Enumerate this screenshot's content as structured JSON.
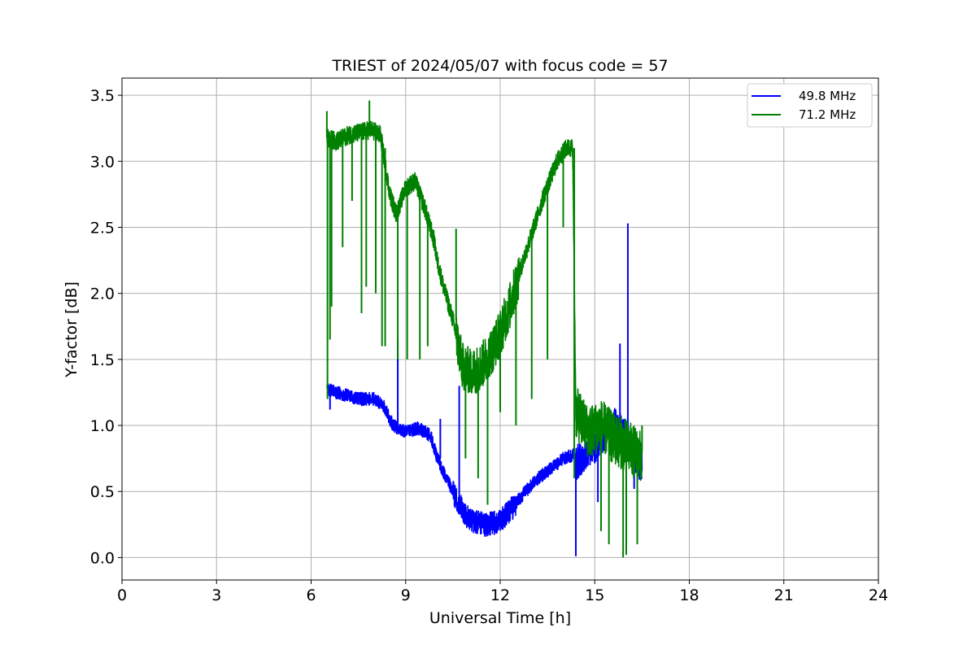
{
  "chart_data": {
    "type": "line",
    "title": "TRIEST of 2024/05/07 with focus code = 57",
    "xlabel": "Universal Time [h]",
    "ylabel": "Y-factor [dB]",
    "xlim": [
      0,
      24
    ],
    "ylim": [
      -0.17,
      3.63
    ],
    "xticks": [
      0,
      3,
      6,
      9,
      12,
      15,
      18,
      21,
      24
    ],
    "xtick_labels": [
      "0",
      "3",
      "6",
      "9",
      "12",
      "15",
      "18",
      "21",
      "24"
    ],
    "yticks": [
      0.0,
      0.5,
      1.0,
      1.5,
      2.0,
      2.5,
      3.0,
      3.5
    ],
    "ytick_labels": [
      "0.0",
      "0.5",
      "1.0",
      "1.5",
      "2.0",
      "2.5",
      "3.0",
      "3.5"
    ],
    "grid": true,
    "legend_position": "top-right",
    "series": [
      {
        "name": "49.8 MHz",
        "color": "#0000ff",
        "x": [
          6.5,
          6.8,
          7.2,
          7.6,
          8.0,
          8.3,
          8.6,
          9.0,
          9.4,
          9.8,
          10.0,
          10.3,
          10.6,
          10.9,
          11.2,
          11.5,
          11.8,
          12.1,
          12.4,
          12.8,
          13.2,
          13.6,
          14.0,
          14.35,
          14.4,
          14.7,
          15.0,
          15.3,
          15.6,
          15.8,
          16.1,
          16.3,
          16.5
        ],
        "y": [
          1.28,
          1.25,
          1.22,
          1.2,
          1.2,
          1.15,
          1.0,
          0.95,
          0.98,
          0.92,
          0.75,
          0.6,
          0.45,
          0.32,
          0.27,
          0.25,
          0.26,
          0.3,
          0.38,
          0.5,
          0.6,
          0.67,
          0.75,
          0.78,
          0.72,
          0.8,
          0.85,
          0.95,
          1.0,
          0.95,
          0.85,
          0.75,
          0.72
        ],
        "spikes": [
          {
            "x": 6.6,
            "from": 1.28,
            "to": 1.12
          },
          {
            "x": 8.75,
            "from": 1.0,
            "to": 1.64
          },
          {
            "x": 10.1,
            "from": 0.75,
            "to": 1.05
          },
          {
            "x": 10.7,
            "from": 0.45,
            "to": 1.3
          },
          {
            "x": 14.4,
            "from": 0.78,
            "to": 0.01
          },
          {
            "x": 15.1,
            "from": 0.85,
            "to": 0.42
          },
          {
            "x": 15.8,
            "from": 0.98,
            "to": 1.62
          },
          {
            "x": 16.05,
            "from": 0.9,
            "to": 2.53
          },
          {
            "x": 16.25,
            "from": 0.8,
            "to": 0.52
          }
        ]
      },
      {
        "name": "71.2 MHz",
        "color": "#008000",
        "x": [
          6.5,
          6.8,
          7.2,
          7.6,
          7.9,
          8.2,
          8.5,
          8.7,
          9.0,
          9.3,
          9.6,
          9.9,
          10.0,
          10.2,
          10.5,
          10.8,
          11.1,
          11.4,
          11.7,
          12.0,
          12.3,
          12.6,
          13.0,
          13.4,
          13.8,
          14.1,
          14.3,
          14.4,
          14.8,
          15.2,
          15.6,
          16.0,
          16.5
        ],
        "y": [
          3.18,
          3.15,
          3.2,
          3.22,
          3.24,
          3.2,
          2.75,
          2.6,
          2.8,
          2.85,
          2.65,
          2.4,
          2.25,
          2.05,
          1.8,
          1.45,
          1.4,
          1.45,
          1.55,
          1.7,
          1.9,
          2.15,
          2.45,
          2.75,
          3.0,
          3.1,
          3.1,
          1.1,
          0.95,
          1.0,
          0.9,
          0.85,
          0.75
        ],
        "spikes": [
          {
            "x": 6.5,
            "from": 3.18,
            "to": 3.38
          },
          {
            "x": 6.52,
            "from": 3.15,
            "to": 1.2
          },
          {
            "x": 6.6,
            "from": 3.15,
            "to": 1.65
          },
          {
            "x": 6.65,
            "from": 3.15,
            "to": 1.9
          },
          {
            "x": 7.0,
            "from": 3.15,
            "to": 2.35
          },
          {
            "x": 7.3,
            "from": 3.18,
            "to": 2.7
          },
          {
            "x": 7.6,
            "from": 3.2,
            "to": 1.85
          },
          {
            "x": 7.75,
            "from": 3.22,
            "to": 2.05
          },
          {
            "x": 7.85,
            "from": 3.24,
            "to": 3.46
          },
          {
            "x": 8.05,
            "from": 3.22,
            "to": 2.0
          },
          {
            "x": 8.25,
            "from": 3.2,
            "to": 1.6
          },
          {
            "x": 8.35,
            "from": 3.1,
            "to": 1.6
          },
          {
            "x": 8.75,
            "from": 2.6,
            "to": 1.5
          },
          {
            "x": 9.05,
            "from": 2.8,
            "to": 1.5
          },
          {
            "x": 9.45,
            "from": 2.8,
            "to": 1.5
          },
          {
            "x": 9.7,
            "from": 2.6,
            "to": 1.6
          },
          {
            "x": 10.6,
            "from": 1.8,
            "to": 2.49
          },
          {
            "x": 10.9,
            "from": 1.45,
            "to": 0.75
          },
          {
            "x": 11.3,
            "from": 1.4,
            "to": 0.6
          },
          {
            "x": 11.6,
            "from": 1.5,
            "to": 0.4
          },
          {
            "x": 12.0,
            "from": 1.7,
            "to": 1.1
          },
          {
            "x": 12.5,
            "from": 2.0,
            "to": 1.0
          },
          {
            "x": 13.0,
            "from": 2.45,
            "to": 1.2
          },
          {
            "x": 13.5,
            "from": 2.8,
            "to": 1.5
          },
          {
            "x": 14.0,
            "from": 3.05,
            "to": 2.5
          },
          {
            "x": 14.35,
            "from": 3.1,
            "to": 0.6
          },
          {
            "x": 15.2,
            "from": 1.0,
            "to": 0.2
          },
          {
            "x": 15.45,
            "from": 0.95,
            "to": 0.1
          },
          {
            "x": 15.9,
            "from": 0.9,
            "to": 0.0
          },
          {
            "x": 16.0,
            "from": 0.85,
            "to": 0.02
          },
          {
            "x": 16.35,
            "from": 0.8,
            "to": 0.1
          },
          {
            "x": 16.5,
            "from": 0.8,
            "to": 1.0
          }
        ]
      }
    ]
  }
}
